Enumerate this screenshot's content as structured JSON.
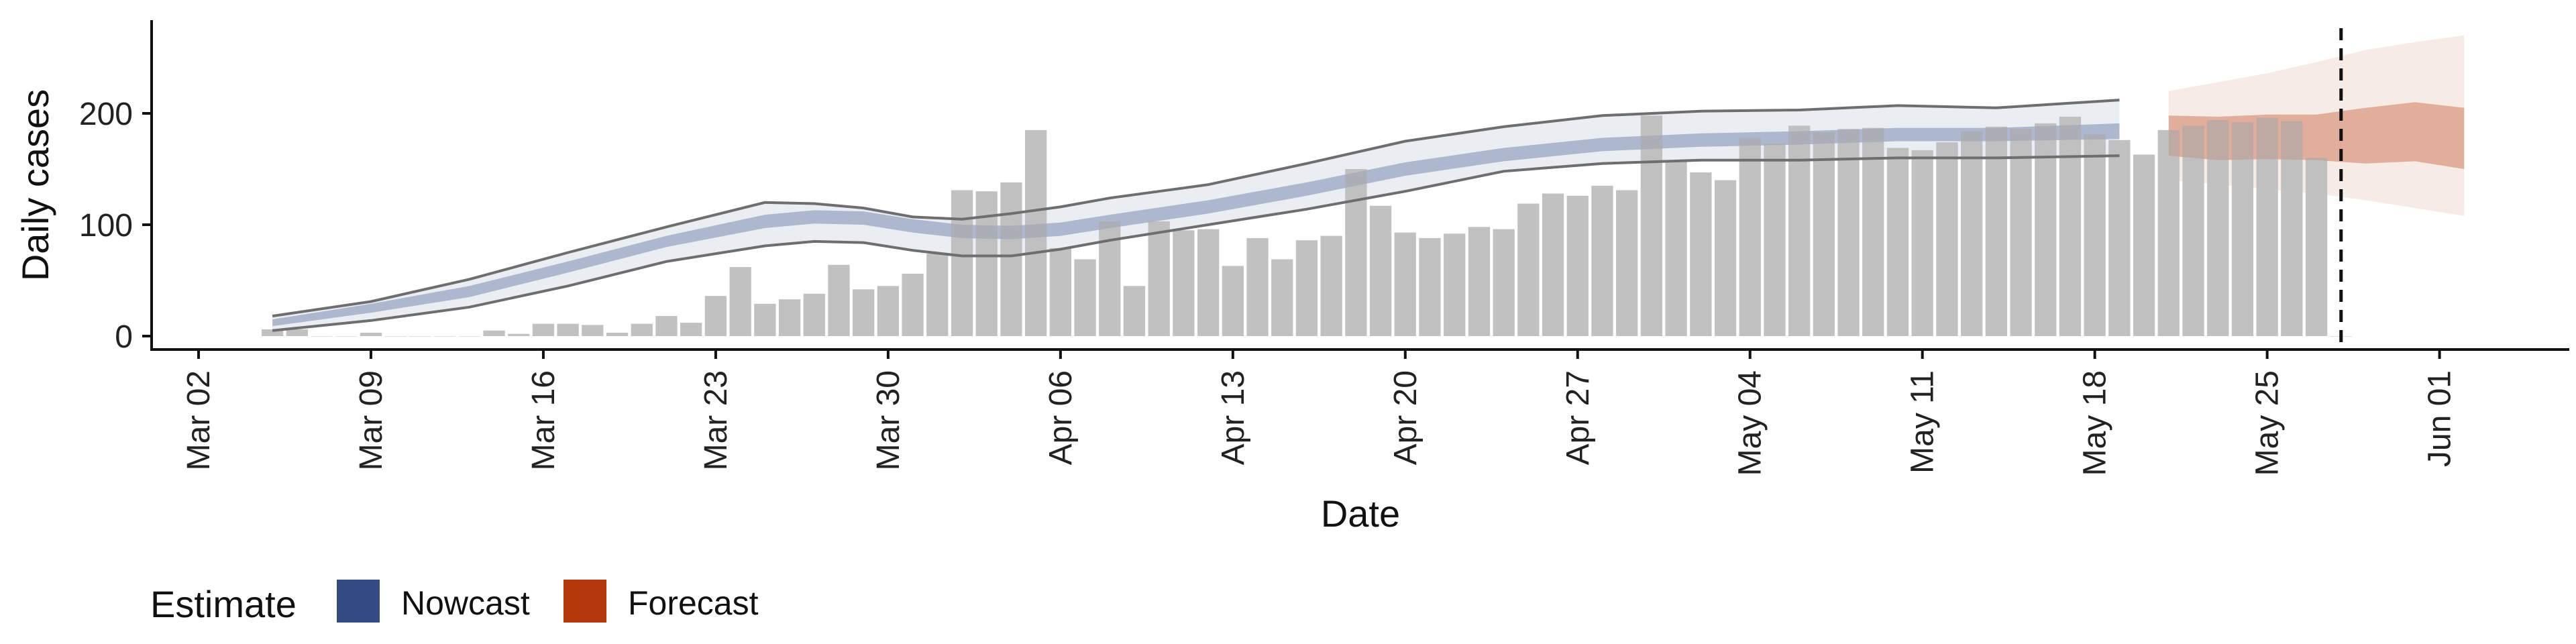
{
  "chart_data": {
    "type": "bar",
    "xlabel": "Date",
    "ylabel": "Daily cases",
    "ylim": [
      -12,
      285
    ],
    "y_ticks": [
      0,
      100,
      200
    ],
    "x_ticks": [
      "Mar 02",
      "Mar 09",
      "Mar 16",
      "Mar 23",
      "Mar 30",
      "Apr 06",
      "Apr 13",
      "Apr 20",
      "Apr 27",
      "May 04",
      "May 11",
      "May 18",
      "May 25",
      "Jun 01"
    ],
    "x_dates": [
      "2020-03-05",
      "2020-03-06",
      "2020-03-07",
      "2020-03-08",
      "2020-03-09",
      "2020-03-10",
      "2020-03-11",
      "2020-03-12",
      "2020-03-13",
      "2020-03-14",
      "2020-03-15",
      "2020-03-16",
      "2020-03-17",
      "2020-03-18",
      "2020-03-19",
      "2020-03-20",
      "2020-03-21",
      "2020-03-22",
      "2020-03-23",
      "2020-03-24",
      "2020-03-25",
      "2020-03-26",
      "2020-03-27",
      "2020-03-28",
      "2020-03-29",
      "2020-03-30",
      "2020-03-31",
      "2020-04-01",
      "2020-04-02",
      "2020-04-03",
      "2020-04-04",
      "2020-04-05",
      "2020-04-06",
      "2020-04-07",
      "2020-04-08",
      "2020-04-09",
      "2020-04-10",
      "2020-04-11",
      "2020-04-12",
      "2020-04-13",
      "2020-04-14",
      "2020-04-15",
      "2020-04-16",
      "2020-04-17",
      "2020-04-18",
      "2020-04-19",
      "2020-04-20",
      "2020-04-21",
      "2020-04-22",
      "2020-04-23",
      "2020-04-24",
      "2020-04-25",
      "2020-04-26",
      "2020-04-27",
      "2020-04-28",
      "2020-04-29",
      "2020-04-30",
      "2020-05-01",
      "2020-05-02",
      "2020-05-03",
      "2020-05-04",
      "2020-05-05",
      "2020-05-06",
      "2020-05-07",
      "2020-05-08",
      "2020-05-09",
      "2020-05-10",
      "2020-05-11",
      "2020-05-12",
      "2020-05-13",
      "2020-05-14",
      "2020-05-15",
      "2020-05-16",
      "2020-05-17",
      "2020-05-18",
      "2020-05-19",
      "2020-05-20",
      "2020-05-21",
      "2020-05-22",
      "2020-05-23",
      "2020-05-24",
      "2020-05-25",
      "2020-05-26",
      "2020-05-27",
      "2020-05-28"
    ],
    "cases": [
      6,
      6,
      0,
      0,
      3,
      0,
      0,
      0,
      0,
      5,
      2,
      11,
      11,
      10,
      3,
      11,
      18,
      12,
      36,
      62,
      29,
      33,
      38,
      64,
      42,
      45,
      56,
      74,
      131,
      130,
      138,
      185,
      79,
      69,
      103,
      45,
      103,
      95,
      96,
      63,
      88,
      69,
      86,
      90,
      150,
      117,
      93,
      88,
      92,
      98,
      96,
      119,
      128,
      126,
      135,
      131,
      198,
      158,
      147,
      140,
      178,
      173,
      189,
      183,
      186,
      187,
      169,
      167,
      174,
      184,
      188,
      186,
      191,
      197,
      181,
      176,
      163,
      185,
      189,
      194,
      192,
      196,
      193,
      160,
      0
    ],
    "series": [
      {
        "name": "Nowcast",
        "x_range": [
          "2020-03-05",
          "2020-05-19"
        ],
        "dates": [
          "2020-03-05",
          "2020-03-09",
          "2020-03-13",
          "2020-03-17",
          "2020-03-21",
          "2020-03-25",
          "2020-03-27",
          "2020-03-29",
          "2020-03-31",
          "2020-04-02",
          "2020-04-04",
          "2020-04-06",
          "2020-04-08",
          "2020-04-12",
          "2020-04-16",
          "2020-04-20",
          "2020-04-24",
          "2020-04-28",
          "2020-05-02",
          "2020-05-06",
          "2020-05-10",
          "2020-05-14",
          "2020-05-19"
        ],
        "median": [
          12,
          25,
          40,
          62,
          85,
          103,
          107,
          106,
          99,
          94,
          93,
          96,
          103,
          116,
          132,
          150,
          163,
          172,
          176,
          178,
          181,
          181,
          184
        ],
        "inner_lower": [
          9,
          21,
          35,
          57,
          80,
          97,
          101,
          100,
          93,
          88,
          87,
          90,
          97,
          110,
          126,
          144,
          157,
          166,
          170,
          172,
          175,
          175,
          177
        ],
        "inner_upper": [
          15,
          29,
          45,
          67,
          90,
          109,
          113,
          112,
          105,
          100,
          99,
          102,
          109,
          122,
          138,
          156,
          169,
          178,
          182,
          184,
          187,
          187,
          191
        ],
        "lower_90": [
          5,
          14,
          26,
          45,
          67,
          81,
          85,
          84,
          77,
          72,
          72,
          78,
          86,
          100,
          114,
          130,
          148,
          155,
          158,
          158,
          160,
          160,
          162
        ],
        "upper_90": [
          18,
          31,
          51,
          75,
          98,
          120,
          119,
          115,
          107,
          105,
          110,
          116,
          124,
          136,
          155,
          175,
          188,
          198,
          202,
          203,
          207,
          205,
          212
        ]
      },
      {
        "name": "Forecast",
        "x_range": [
          "2020-05-21",
          "2020-06-02"
        ],
        "dates": [
          "2020-05-21",
          "2020-05-23",
          "2020-05-25",
          "2020-05-27",
          "2020-05-29",
          "2020-05-31",
          "2020-06-02"
        ],
        "median": [
          177,
          178,
          179,
          179,
          180,
          181,
          178
        ],
        "inner_lower": [
          162,
          158,
          159,
          158,
          155,
          157,
          150
        ],
        "inner_upper": [
          198,
          197,
          199,
          199,
          205,
          210,
          205
        ],
        "lower_90": [
          140,
          136,
          132,
          128,
          122,
          115,
          108
        ],
        "upper_90": [
          220,
          228,
          236,
          246,
          257,
          264,
          270
        ]
      }
    ],
    "vline_date": "2020-05-28",
    "legend": {
      "title": "Estimate",
      "position": "bottom-left",
      "entries": [
        {
          "label": "Nowcast",
          "color": "#344a82"
        },
        {
          "label": "Forecast",
          "color": "#b5380b"
        }
      ]
    },
    "grid": false
  },
  "colors": {
    "bar": "#bebebe",
    "nowcast": "#344a82",
    "forecast": "#b5380b",
    "band_line": "#6e6e6e",
    "axis": "#111111"
  }
}
